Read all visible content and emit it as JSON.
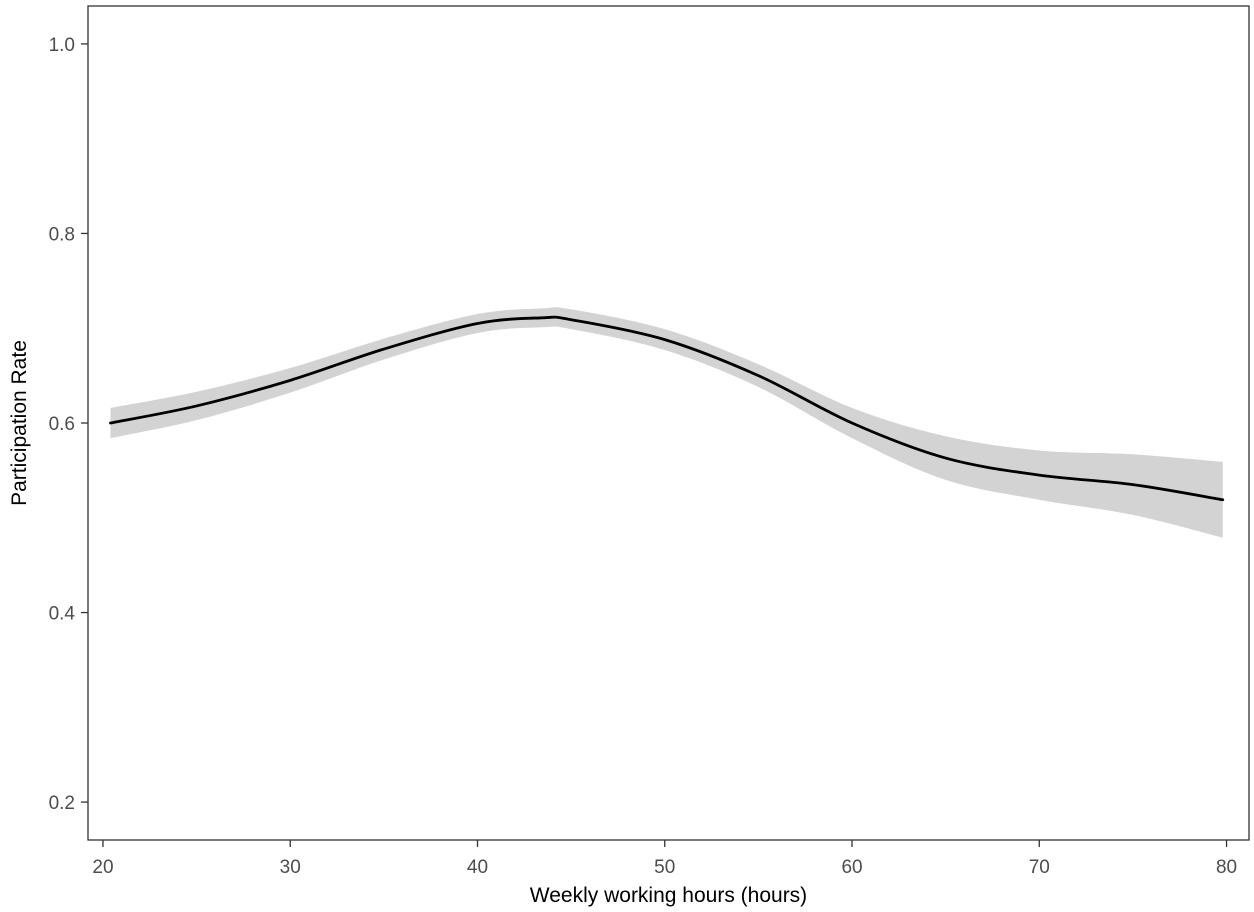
{
  "chart_data": {
    "type": "line",
    "title": "",
    "xlabel": "Weekly working hours (hours)",
    "ylabel": "Participation Rate",
    "xlim": [
      19.2,
      81.2
    ],
    "ylim": [
      0.16,
      1.04
    ],
    "x_ticks": [
      20,
      30,
      40,
      50,
      60,
      70,
      80
    ],
    "y_ticks": [
      0.2,
      0.4,
      0.6,
      0.8,
      1.0
    ],
    "x_tick_labels": [
      "20",
      "30",
      "40",
      "50",
      "60",
      "70",
      "80"
    ],
    "y_tick_labels": [
      "0.2",
      "0.4",
      "0.6",
      "0.8",
      "1.0"
    ],
    "grid": false,
    "legend": "none",
    "colors": {
      "line": "#000000",
      "ribbon": "#d3d3d3",
      "panel_border": "#333333",
      "tick_text": "#4d4d4d"
    },
    "series": [
      {
        "x": [
          20.4,
          25,
          30,
          35,
          40,
          43.5,
          45,
          50,
          55,
          60,
          65,
          70,
          75,
          79.8
        ],
        "y": [
          0.6,
          0.618,
          0.645,
          0.678,
          0.705,
          0.711,
          0.709,
          0.688,
          0.65,
          0.6,
          0.563,
          0.545,
          0.535,
          0.519
        ],
        "lower": [
          0.584,
          0.603,
          0.632,
          0.667,
          0.695,
          0.701,
          0.699,
          0.677,
          0.638,
          0.584,
          0.54,
          0.519,
          0.503,
          0.479
        ],
        "upper": [
          0.616,
          0.633,
          0.658,
          0.689,
          0.715,
          0.721,
          0.72,
          0.699,
          0.662,
          0.616,
          0.586,
          0.571,
          0.567,
          0.559
        ]
      }
    ]
  }
}
